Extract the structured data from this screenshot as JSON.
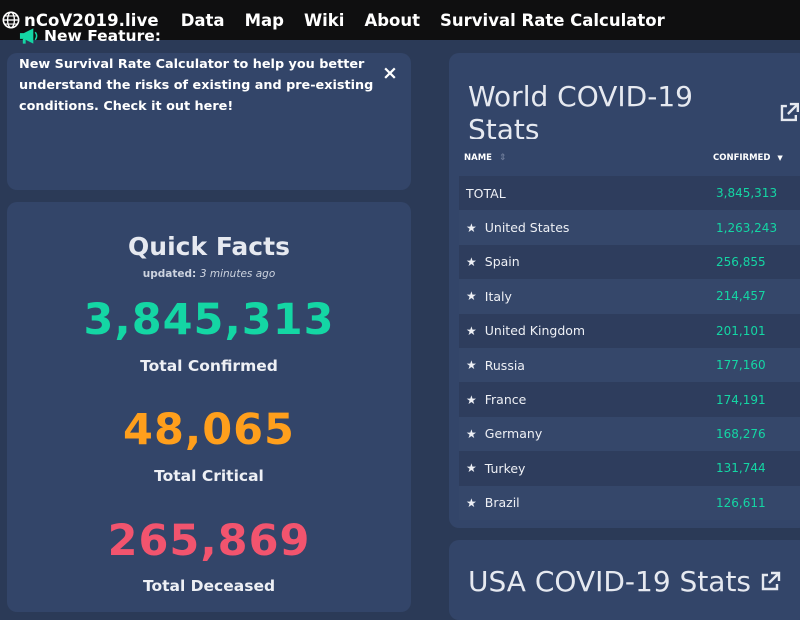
{
  "nav": {
    "brand": "nCoV2019.live",
    "links": [
      "Data",
      "Map",
      "Wiki",
      "About",
      "Survival Rate Calculator"
    ]
  },
  "feature": {
    "title": "New Feature:",
    "body": "New Survival Rate Calculator to help you better understand the risks of existing and pre-existing conditions. Check it out here!",
    "close": "×"
  },
  "facts": {
    "title": "Quick Facts",
    "updated_prefix": "updated: ",
    "updated_ago": "3 minutes ago",
    "confirmed_value": "3,845,313",
    "confirmed_label": "Total Confirmed",
    "critical_value": "48,065",
    "critical_label": "Total Critical",
    "deceased_value": "265,869",
    "deceased_label": "Total Deceased"
  },
  "world": {
    "title": "World COVID-19 Stats",
    "columns": {
      "name": "NAME",
      "confirmed": "CONFIRMED"
    },
    "rows": [
      {
        "name": "TOTAL",
        "starred": false,
        "confirmed": "3,845,313"
      },
      {
        "name": "United States",
        "starred": true,
        "confirmed": "1,263,243"
      },
      {
        "name": "Spain",
        "starred": true,
        "confirmed": "256,855"
      },
      {
        "name": "Italy",
        "starred": true,
        "confirmed": "214,457"
      },
      {
        "name": "United Kingdom",
        "starred": true,
        "confirmed": "201,101"
      },
      {
        "name": "Russia",
        "starred": true,
        "confirmed": "177,160"
      },
      {
        "name": "France",
        "starred": true,
        "confirmed": "174,191"
      },
      {
        "name": "Germany",
        "starred": true,
        "confirmed": "168,276"
      },
      {
        "name": "Turkey",
        "starred": true,
        "confirmed": "131,744"
      },
      {
        "name": "Brazil",
        "starred": true,
        "confirmed": "126,611"
      }
    ]
  },
  "usa": {
    "title": "USA COVID-19 Stats"
  },
  "colors": {
    "confirmed": "#14d6a4",
    "critical": "#ff9f1c",
    "deceased": "#f2546e",
    "navbar": "#0f0f10",
    "background": "#2b3a57",
    "card": "#334569"
  },
  "icons": [
    "globe-icon",
    "megaphone-icon",
    "close-icon",
    "external-link-icon",
    "star-icon",
    "sort-icon"
  ]
}
